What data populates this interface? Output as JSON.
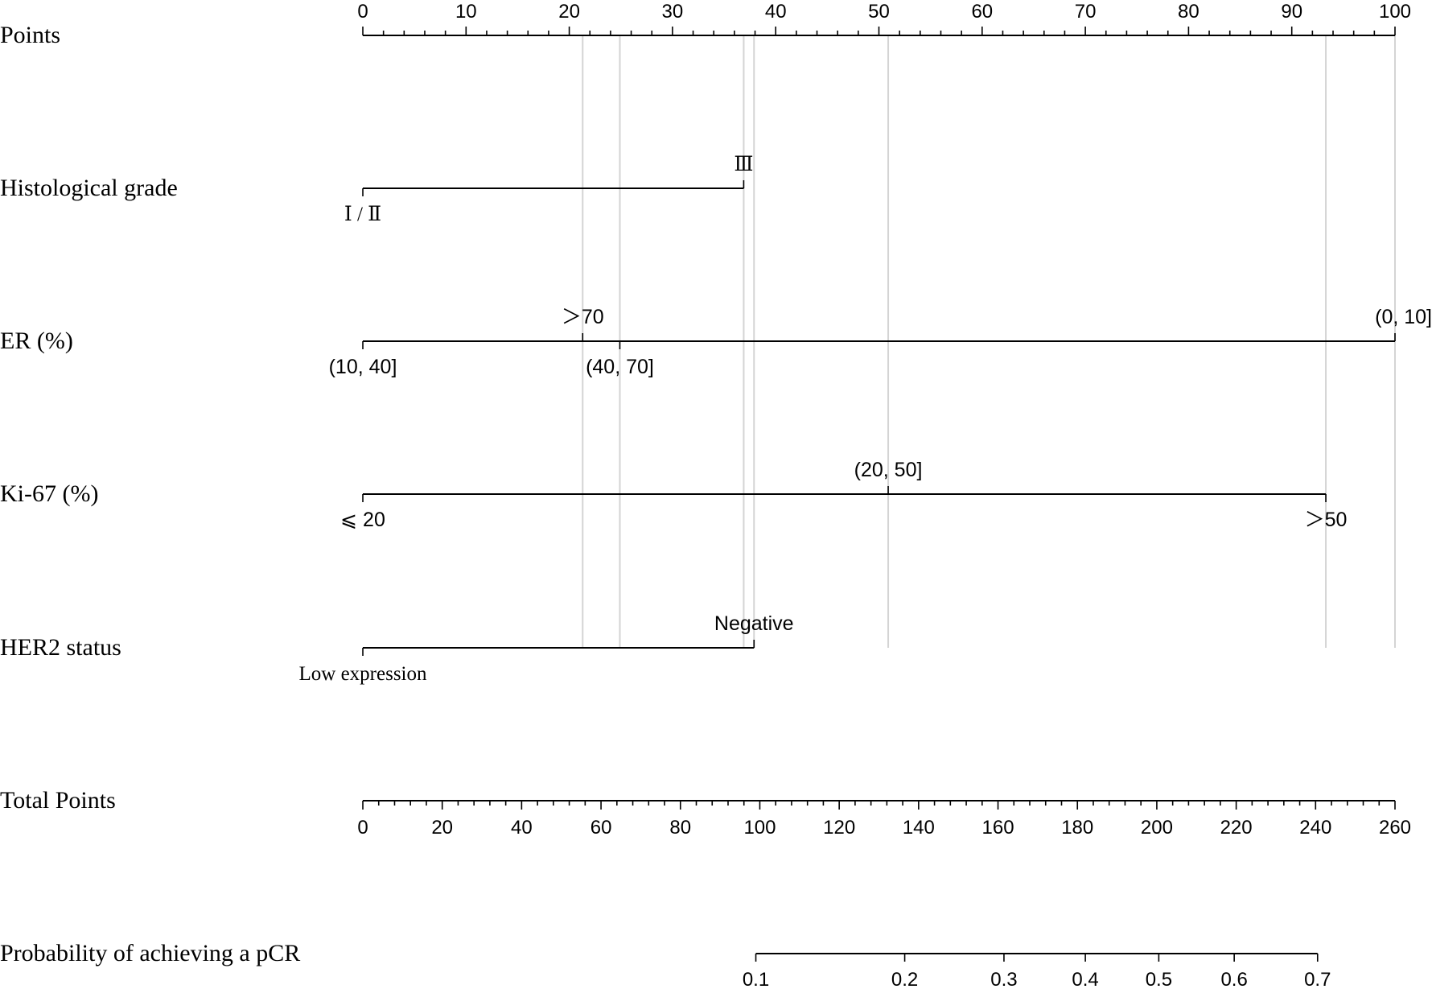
{
  "chart_data": {
    "type": "nomogram",
    "points_axis": {
      "label": "Points",
      "min": 0,
      "max": 100,
      "major_ticks": [
        0,
        10,
        20,
        30,
        40,
        50,
        60,
        70,
        80,
        90,
        100
      ],
      "minor_step": 2
    },
    "variables": [
      {
        "label": "Histological grade",
        "levels": [
          {
            "label": "Ⅰ / Ⅱ",
            "points": 0,
            "side": "below",
            "font": "serif"
          },
          {
            "label": "Ⅲ",
            "points": 36.9,
            "side": "above",
            "font": "serif"
          }
        ]
      },
      {
        "label": "ER (%)",
        "levels": [
          {
            "label": "(10, 40]",
            "points": 0,
            "side": "below",
            "font": "sans"
          },
          {
            "label": "＞70",
            "points": 21.3,
            "side": "above",
            "font": "sans"
          },
          {
            "label": "(40, 70]",
            "points": 24.9,
            "side": "below",
            "font": "sans"
          },
          {
            "label": "(0, 10]",
            "points": 100,
            "side": "above",
            "font": "sans"
          }
        ]
      },
      {
        "label": "Ki-67 (%)",
        "levels": [
          {
            "label": "⩽ 20",
            "points": 0,
            "side": "below",
            "font": "sans"
          },
          {
            "label": "(20, 50]",
            "points": 50.9,
            "side": "above",
            "font": "sans"
          },
          {
            "label": "＞50",
            "points": 93.3,
            "side": "below",
            "font": "sans"
          }
        ]
      },
      {
        "label": "HER2 status",
        "levels": [
          {
            "label": "Low expression",
            "points": 0,
            "side": "below",
            "font": "serif"
          },
          {
            "label": "Negative",
            "points": 37.9,
            "side": "above",
            "font": "sans"
          }
        ]
      }
    ],
    "total_points_axis": {
      "label": "Total Points",
      "min": 0,
      "max": 260,
      "major_ticks": [
        0,
        20,
        40,
        60,
        80,
        100,
        120,
        140,
        160,
        180,
        200,
        220,
        240,
        260
      ],
      "minor_step": 4
    },
    "probability_axis": {
      "label": "Probability of achieving a pCR",
      "ticks": [
        {
          "label": "0.1",
          "total_points": 99
        },
        {
          "label": "0.2",
          "total_points": 136.5
        },
        {
          "label": "0.3",
          "total_points": 161.5
        },
        {
          "label": "0.4",
          "total_points": 182
        },
        {
          "label": "0.5",
          "total_points": 200.5
        },
        {
          "label": "0.6",
          "total_points": 219.5
        },
        {
          "label": "0.7",
          "total_points": 240.5
        }
      ]
    },
    "reference_lines_points": [
      21.3,
      24.9,
      36.9,
      37.9,
      50.9,
      93.3,
      100
    ]
  }
}
